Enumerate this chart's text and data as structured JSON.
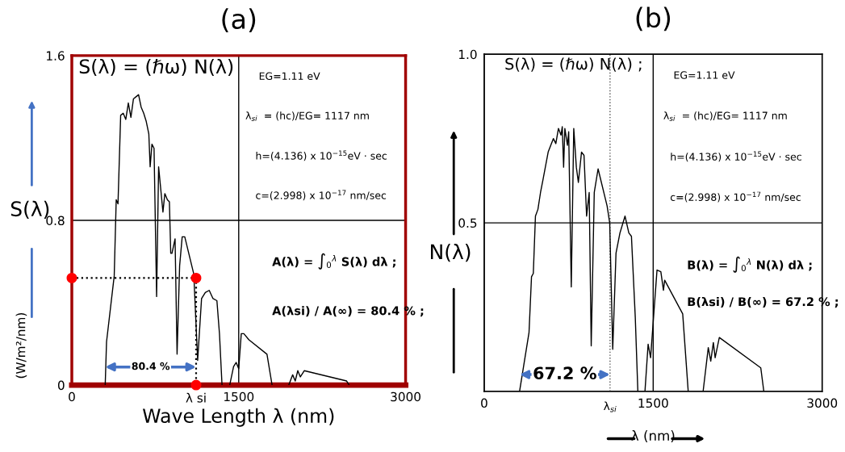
{
  "chart_data": [
    {
      "type": "line",
      "title": "(a)",
      "xlabel": "Wave Length λ (nm)",
      "ylabel": "S(λ)",
      "xlim": [
        0,
        3000
      ],
      "xticks": [
        0,
        1500,
        3000
      ],
      "ylim": [
        0,
        1.6
      ],
      "yticks": [
        0,
        0.8,
        1.6
      ],
      "grid": true,
      "series": [
        {
          "color": "#000000",
          "x": [
            300,
            312,
            381,
            399,
            415,
            439,
            462,
            485,
            508,
            531,
            554,
            577,
            600,
            623,
            646,
            669,
            692,
            704,
            720,
            739,
            762,
            780,
            796,
            819,
            836,
            859,
            877,
            889,
            900,
            928,
            946,
            969,
            992,
            1015,
            1096,
            1131,
            1166,
            1200,
            1235,
            1269,
            1304,
            1327,
            1350,
            1380,
            1419,
            1454,
            1477,
            1500,
            1523,
            1546,
            1592,
            1754,
            1800,
            1880,
            1950,
            1985,
            2008,
            2031,
            2054,
            2089,
            2470,
            2493
          ],
          "values": [
            0,
            0.21,
            0.53,
            0.9,
            0.88,
            1.31,
            1.32,
            1.29,
            1.37,
            1.3,
            1.39,
            1.4,
            1.41,
            1.35,
            1.32,
            1.28,
            1.22,
            1.06,
            1.17,
            1.15,
            0.43,
            1.06,
            0.97,
            0.84,
            0.93,
            0.9,
            0.89,
            0.64,
            0.64,
            0.71,
            0.15,
            0.58,
            0.72,
            0.72,
            0.54,
            0.12,
            0.42,
            0.45,
            0.46,
            0.42,
            0.41,
            0.25,
            0,
            null,
            0,
            0.09,
            0.11,
            0.08,
            0.25,
            0.25,
            0.22,
            0.15,
            0,
            null,
            0,
            0.05,
            0.02,
            0.07,
            0.04,
            0.07,
            0.02,
            0
          ]
        },
        {
          "color": "#000000",
          "line_style": "dotted",
          "x": [
            0,
            1117,
            1117
          ],
          "values": [
            0.52,
            0.52,
            0
          ]
        },
        {
          "type": "scatter",
          "color": "#ff0000",
          "marker": "circle",
          "x": [
            0,
            1117,
            1117
          ],
          "values": [
            0.52,
            0.52,
            0
          ]
        }
      ],
      "annotations": [
        "S(λ) = (ℏω) N(λ)",
        "EG=1.11 eV",
        "λ$_{si}$  = (hc)/EG= 1117 nm",
        "h=(4.136) x 10$^{−15}$eV · sec",
        "c=(2.998) x 10$^{−17}$ nm/sec",
        "A(λ) = ∫$_{0}$$^{λ}$ S(λ) dλ ;",
        "A(λsi) / A(∞) = 80.4 % ;",
        "(W/m²/nm)",
        "80.4 %",
        {
          "text": "λ si",
          "x": 1117,
          "y": 0
        }
      ]
    },
    {
      "type": "line",
      "title": "(b)",
      "xlabel": "λ (nm)",
      "ylabel": "N(λ)",
      "xlim": [
        0,
        3000
      ],
      "xticks": [
        0,
        1500,
        3000
      ],
      "ylim": [
        0,
        1.0
      ],
      "yticks": [
        {
          "value": 0,
          "label": null
        },
        0.5,
        {
          "value": 1.0,
          "label": "1.0"
        }
      ],
      "grid": true,
      "series": [
        {
          "color": "#000000",
          "x": [
            314,
            398,
            420,
            436,
            455,
            477,
            500,
            523,
            568,
            591,
            614,
            636,
            659,
            682,
            693,
            705,
            716,
            739,
            750,
            773,
            795,
            818,
            836,
            864,
            886,
            909,
            932,
            950,
            977,
            1011,
            1091,
            1114,
            1141,
            1170,
            1205,
            1250,
            1284,
            1307,
            1341,
            1364,
            1400,
            1427,
            1455,
            1477,
            1534,
            1568,
            1591,
            1602,
            1762,
            1811,
            1880,
            1943,
            1989,
            2011,
            2034,
            2050,
            2087,
            2455,
            2482
          ],
          "values": [
            0,
            0.175,
            0.34,
            0.35,
            0.52,
            0.54,
            0.59,
            0.63,
            0.71,
            0.73,
            0.75,
            0.735,
            0.78,
            0.76,
            0.785,
            0.665,
            0.78,
            0.73,
            0.77,
            0.31,
            0.78,
            0.665,
            0.62,
            0.71,
            0.7,
            0.52,
            0.59,
            0.135,
            0.59,
            0.66,
            0.55,
            0.5,
            0.125,
            0.41,
            0.47,
            0.52,
            0.47,
            0.46,
            0.22,
            0,
            null,
            0,
            0.14,
            0.1,
            0.36,
            0.355,
            0.3,
            0.33,
            0.23,
            0,
            null,
            0,
            0.13,
            0.09,
            0.145,
            0.1,
            0.16,
            0.07,
            0
          ]
        }
      ],
      "ref_lines": [
        {
          "axis": "x",
          "value": 1117,
          "label": "λ$_{si}$",
          "line_style": "dotted",
          "color": "#555555"
        }
      ],
      "annotations": [
        "S(λ) = (ℏω) N(λ) ;",
        "EG=1.11 eV",
        "λ$_{si}$  = (hc)/EG= 1117 nm",
        "h=(4.136) x 10$^{−15}$eV · sec",
        "c=(2.998) x 10$^{−17}$ nm/sec",
        "B(λ) = ∫$_{0}$$^{λ}$ N(λ) dλ ;",
        "B(λsi) / B(∞) = 67.2 % ;",
        "67.2 %"
      ]
    }
  ]
}
